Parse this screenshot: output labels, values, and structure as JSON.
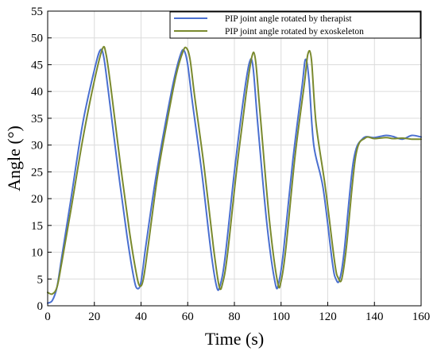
{
  "chart_data": {
    "type": "line",
    "xlabel": "Time (s)",
    "ylabel": "Angle (°)",
    "xlim": [
      0,
      160
    ],
    "ylim": [
      0,
      55
    ],
    "xticks": [
      0,
      20,
      40,
      60,
      80,
      100,
      120,
      140,
      160
    ],
    "yticks": [
      0,
      5,
      10,
      15,
      20,
      25,
      30,
      35,
      40,
      45,
      50,
      55
    ],
    "grid": true,
    "legend_position": "top-right",
    "series": [
      {
        "name": "PIP joint angle rotated by therapist",
        "color": "#4a6fd0",
        "x": [
          0,
          2,
          4,
          6,
          10,
          15,
          20,
          22.5,
          24,
          26,
          30,
          34,
          37,
          38.5,
          40,
          42,
          46,
          50,
          54,
          57,
          58.5,
          60,
          62,
          66,
          70,
          72.5,
          74,
          76,
          80,
          84,
          86.5,
          88,
          90,
          94,
          97.5,
          99,
          101,
          105,
          109,
          110.5,
          112,
          114,
          118,
          122,
          123.5,
          125,
          127,
          131,
          135,
          140,
          145,
          148,
          152,
          156,
          160
        ],
        "y": [
          0.5,
          1,
          3.5,
          9,
          20,
          34,
          44,
          47.7,
          46.5,
          40,
          26,
          13,
          5,
          3.2,
          4.5,
          11,
          23,
          33,
          42,
          47,
          47.6,
          45,
          38,
          25,
          10,
          3.4,
          4,
          9,
          25,
          39,
          45.5,
          44.5,
          34,
          15,
          4.2,
          4.3,
          10,
          27,
          41,
          46,
          42,
          30,
          22,
          8,
          5,
          4.8,
          10,
          27,
          31.2,
          31.4,
          31.8,
          31.6,
          31.1,
          31.8,
          31.5
        ]
      },
      {
        "name": "PIP joint angle rotated by exoskeleton",
        "color": "#7a8a2e",
        "x": [
          0,
          2,
          4,
          6,
          10,
          15,
          20,
          23.5,
          25,
          27,
          31,
          35,
          38,
          39.5,
          41,
          43,
          47,
          51,
          55,
          58,
          59.5,
          61,
          63,
          67,
          71,
          73.5,
          75,
          77,
          81,
          85,
          87.5,
          89,
          91,
          95,
          98.5,
          100,
          102,
          106,
          110,
          111.5,
          113,
          115,
          119,
          123,
          124.5,
          126,
          128,
          132,
          136,
          140,
          145,
          148,
          152,
          156,
          160
        ],
        "y": [
          2.5,
          2.2,
          3.5,
          8,
          18,
          31,
          42,
          48,
          47,
          41,
          27,
          14,
          6,
          3.7,
          5,
          11,
          24,
          34,
          43,
          47.5,
          48.1,
          46,
          39,
          26,
          11,
          3.6,
          4.3,
          9.5,
          25.5,
          39.5,
          46.5,
          46,
          36,
          16,
          4.4,
          4.6,
          10.5,
          28,
          41.5,
          47,
          46,
          34,
          22,
          8,
          5.2,
          5,
          11,
          28,
          31.3,
          31.2,
          31.4,
          31.2,
          31.3,
          31.1,
          31.1
        ]
      }
    ]
  }
}
